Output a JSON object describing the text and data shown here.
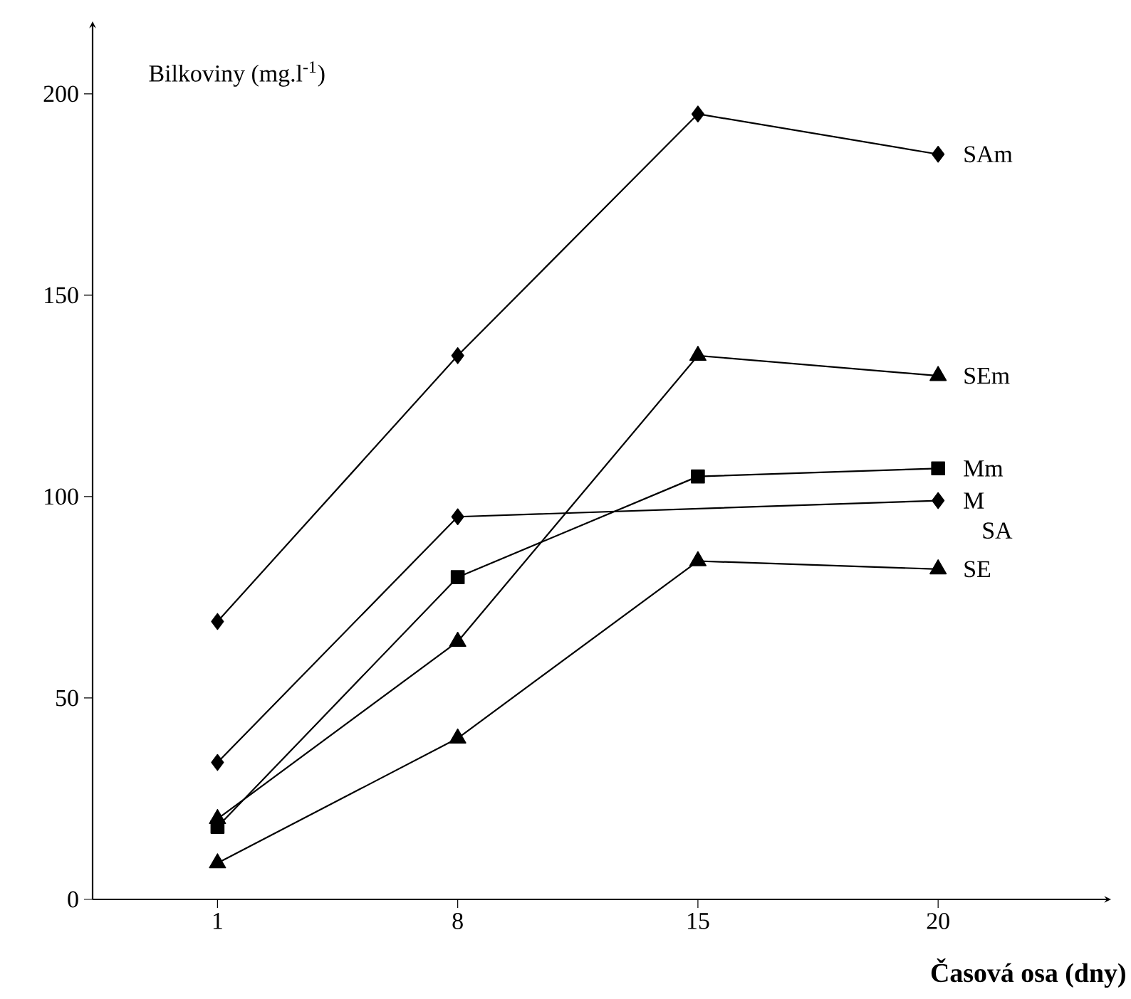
{
  "chart_data": {
    "type": "line",
    "xlabel": "**Časová osa (dny)**",
    "ylabel": "Bilkoviny (mg.l$^{-1}$)",
    "categories": [
      "1",
      "8",
      "15",
      "20"
    ],
    "ylim": [
      0,
      218
    ],
    "yticks": [
      0,
      50,
      100,
      150,
      200
    ],
    "grid": false,
    "legend": false,
    "line_style": "solid",
    "series": [
      {
        "name": "SAm",
        "color": "#000000",
        "marker": "diamond",
        "values": [
          69,
          135,
          195,
          185
        ]
      },
      {
        "name": "SEm",
        "color": "#000000",
        "marker": "triangle",
        "values": [
          20,
          64,
          135,
          130
        ]
      },
      {
        "name": "Mm",
        "color": "#000000",
        "marker": "square",
        "values": [
          18,
          80,
          105,
          107
        ]
      },
      {
        "name": "M",
        "color": "#000000",
        "marker": "diamond",
        "values": [
          34,
          95,
          null,
          99
        ]
      },
      {
        "name": "SE",
        "color": "#000000",
        "marker": "triangle",
        "values": [
          9,
          40,
          84,
          82
        ]
      }
    ],
    "annotations": [
      "SA"
    ]
  }
}
